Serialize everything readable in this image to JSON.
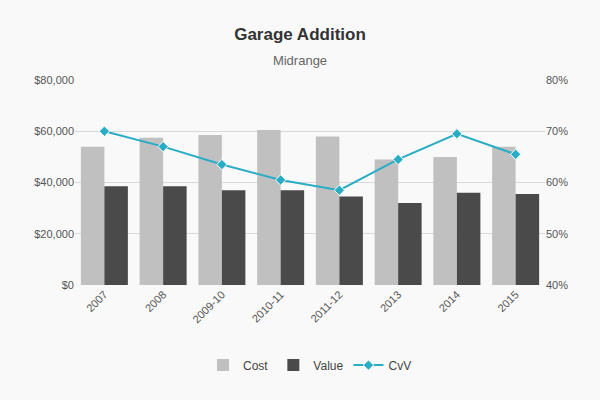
{
  "chart_data": {
    "type": "bar",
    "title": "Garage Addition",
    "subtitle": "Midrange",
    "categories": [
      "2007",
      "2008",
      "2009-10",
      "2010-11",
      "2011-12",
      "2013",
      "2014",
      "2015"
    ],
    "series": [
      {
        "name": "Cost",
        "color": "#c0c0c0",
        "values": [
          54000,
          57500,
          58500,
          60500,
          58000,
          49000,
          50000,
          54000
        ]
      },
      {
        "name": "Value",
        "color": "#4a4a4a",
        "values": [
          38500,
          38500,
          37000,
          37000,
          34500,
          32000,
          36000,
          35500
        ]
      },
      {
        "name": "CvV",
        "type": "line",
        "axis": "y2",
        "color": "#29adc5",
        "marker": "diamond",
        "values": [
          70.0,
          67.0,
          63.5,
          60.5,
          58.5,
          64.5,
          69.5,
          65.5
        ]
      }
    ],
    "ylim": [
      0,
      80000
    ],
    "yticks": [
      {
        "value": 0,
        "label": "$0"
      },
      {
        "value": 20000,
        "label": "$20,000"
      },
      {
        "value": 40000,
        "label": "$40,000"
      },
      {
        "value": 60000,
        "label": "$60,000"
      },
      {
        "value": 80000,
        "label": "$80,000"
      }
    ],
    "y2lim": [
      40,
      80
    ],
    "y2ticks": [
      {
        "value": 40,
        "label": "40%"
      },
      {
        "value": 50,
        "label": "50%"
      },
      {
        "value": 60,
        "label": "60%"
      },
      {
        "value": 70,
        "label": "70%"
      },
      {
        "value": 80,
        "label": "80%"
      }
    ],
    "grid": true,
    "legend": "bottom"
  }
}
